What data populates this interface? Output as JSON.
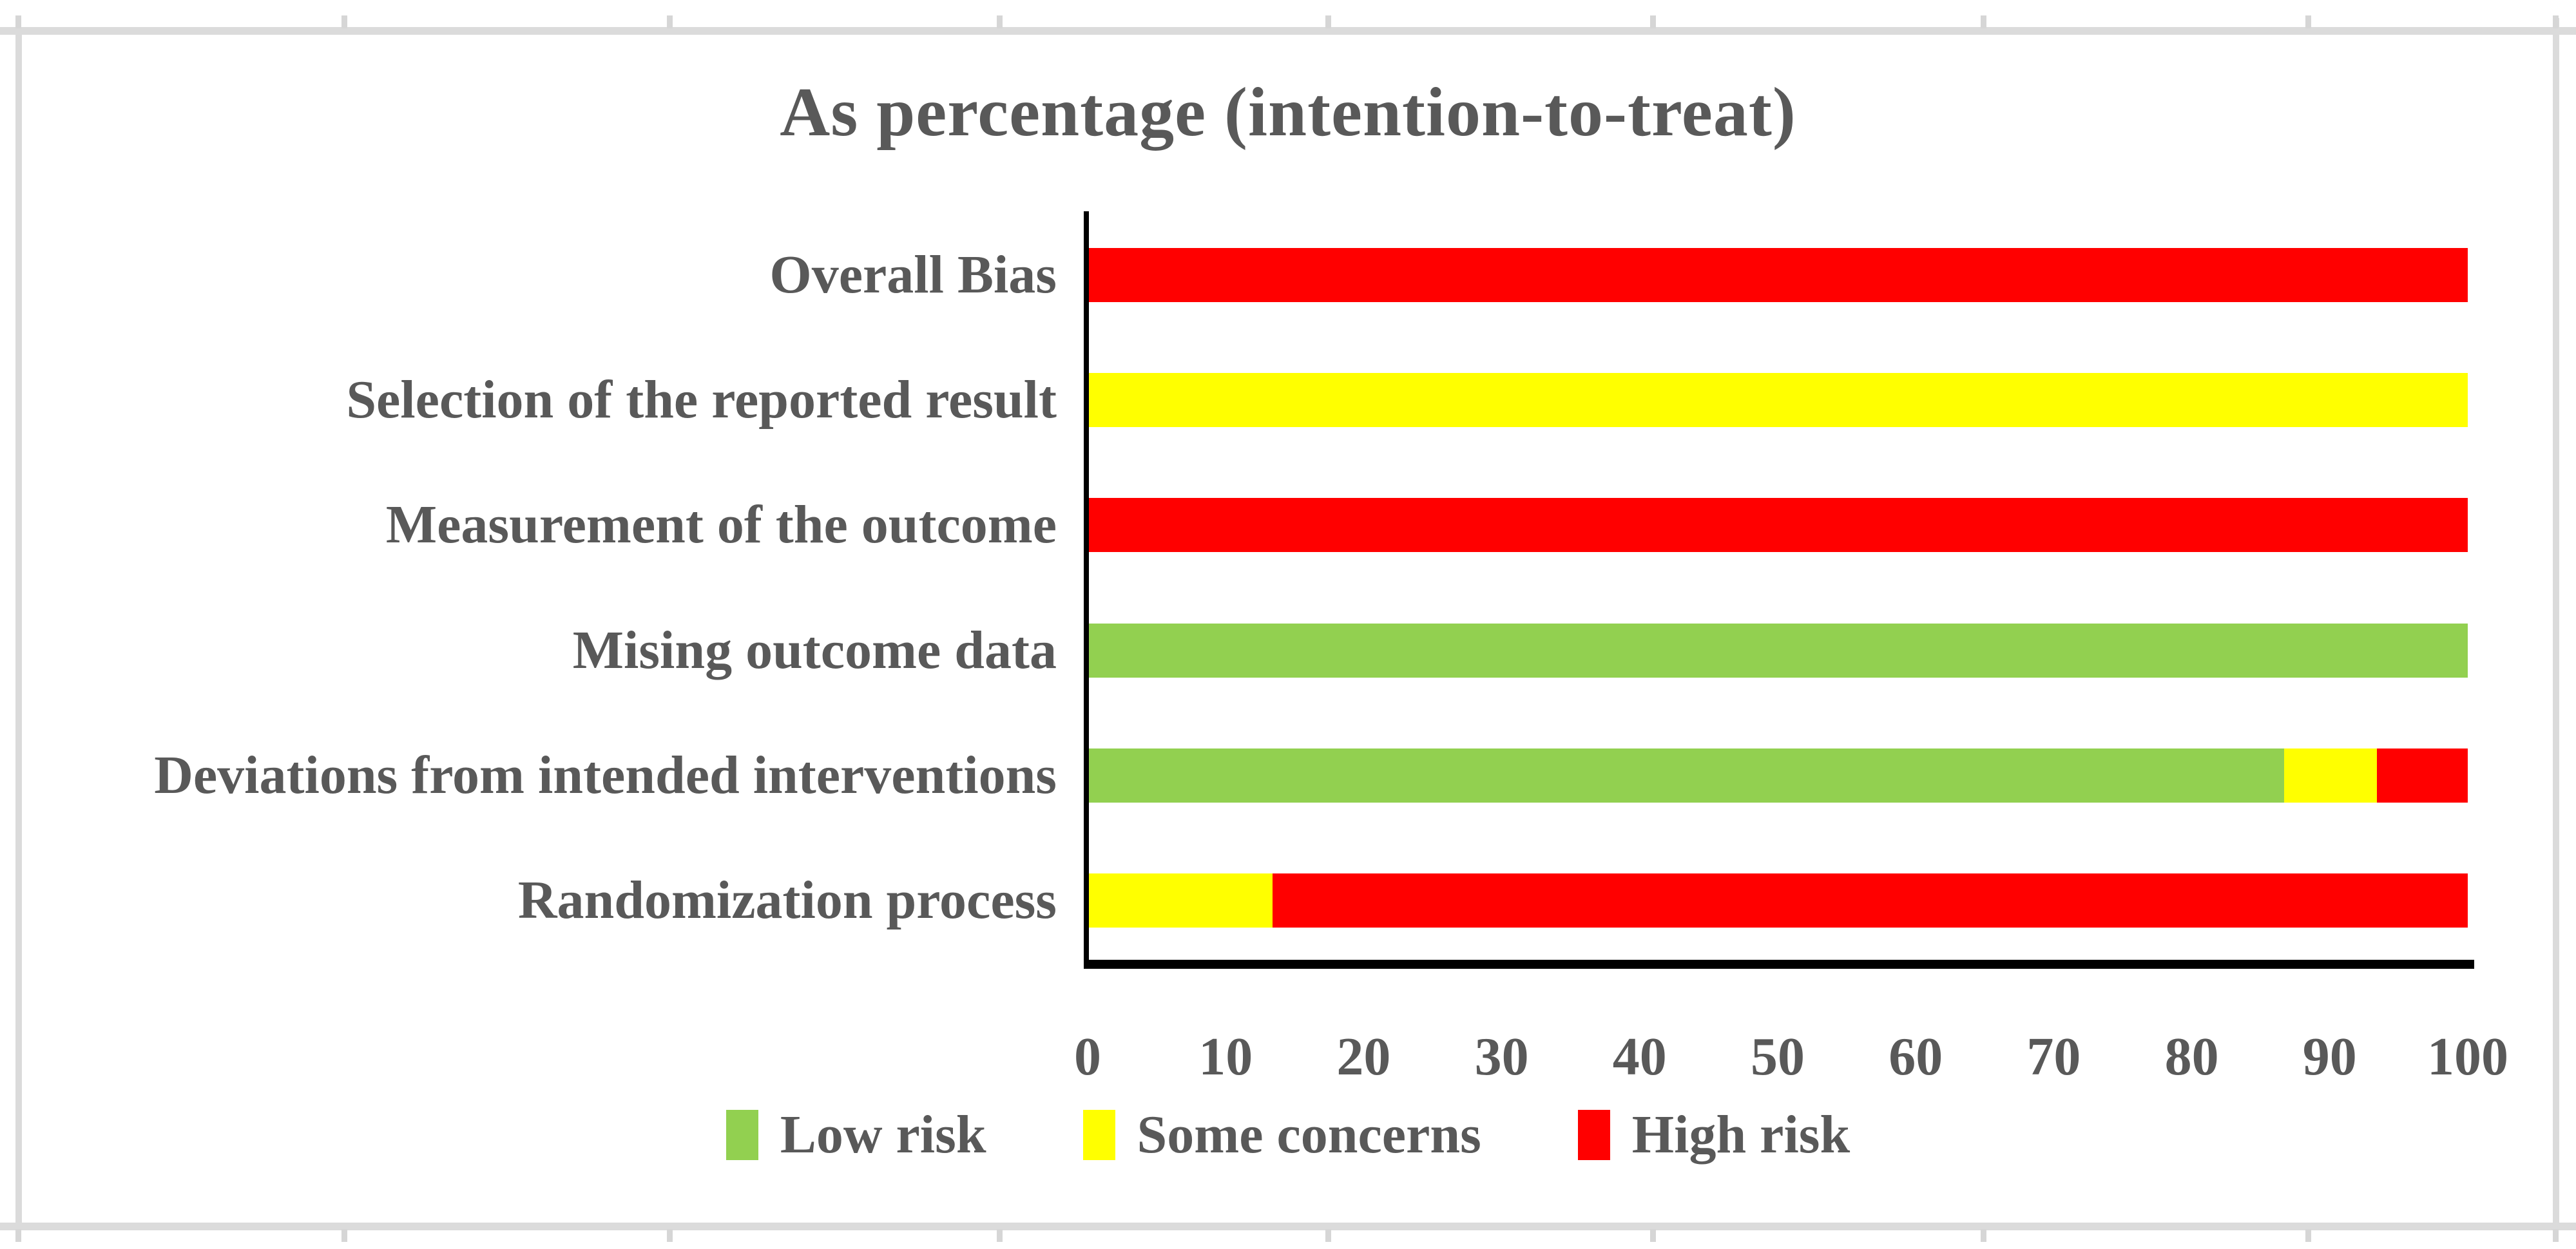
{
  "title": "As percentage (intention-to-treat)",
  "colors": {
    "low_risk": "#92D050",
    "some_concerns": "#FFFF00",
    "high_risk": "#FF0000",
    "text": "#595959",
    "axis": "#000000",
    "frame": "#DBDBDB"
  },
  "chart_data": {
    "type": "bar",
    "orientation": "horizontal",
    "stacked": true,
    "title": "As percentage (intention-to-treat)",
    "categories": [
      "Overall Bias",
      "Selection of the reported result",
      "Measurement of the outcome",
      "Mising outcome data",
      "Deviations from intended interventions",
      "Randomization process"
    ],
    "series": [
      {
        "name": "Low risk",
        "color": "#92D050",
        "values": [
          0,
          0,
          0,
          100,
          86.7,
          0
        ]
      },
      {
        "name": "Some concerns",
        "color": "#FFFF00",
        "values": [
          0,
          100,
          0,
          0,
          6.7,
          13.3
        ]
      },
      {
        "name": "High risk",
        "color": "#FF0000",
        "values": [
          100,
          0,
          100,
          0,
          6.6,
          86.7
        ]
      }
    ],
    "xlim": [
      0,
      100
    ],
    "x_ticks": [
      "0",
      "10",
      "20",
      "30",
      "40",
      "50",
      "60",
      "70",
      "80",
      "90",
      "100"
    ],
    "grid": false,
    "legend_position": "bottom"
  },
  "legend": {
    "items": [
      {
        "label": "Low risk",
        "color": "#92D050"
      },
      {
        "label": "Some concerns",
        "color": "#FFFF00"
      },
      {
        "label": "High risk",
        "color": "#FF0000"
      }
    ]
  }
}
